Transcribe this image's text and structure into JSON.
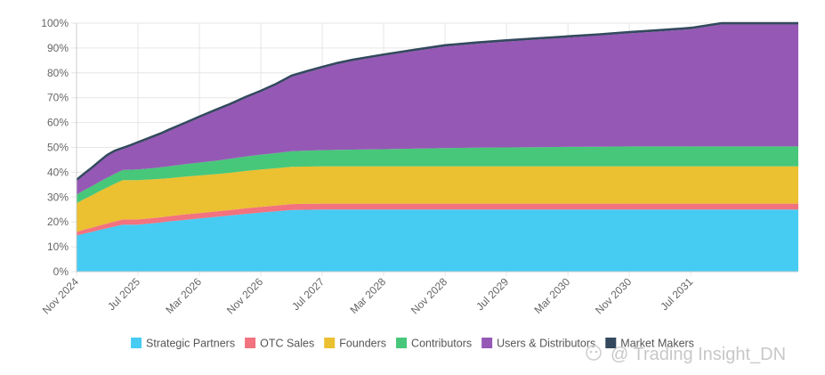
{
  "chart_data": {
    "type": "area",
    "stacked": true,
    "title": "",
    "xlabel": "",
    "ylabel": "",
    "ylim": [
      0,
      100
    ],
    "y_ticks": [
      "0%",
      "10%",
      "20%",
      "30%",
      "40%",
      "50%",
      "60%",
      "70%",
      "80%",
      "90%",
      "100%"
    ],
    "x_ticks": [
      "Nov 2024",
      "Jul 2025",
      "Mar 2026",
      "Nov 2026",
      "Jul 2027",
      "Mar 2028",
      "Nov 2028",
      "Jul 2029",
      "Mar 2030",
      "Nov 2030",
      "Jul 2031"
    ],
    "x_months": [
      0,
      1,
      2,
      3,
      4,
      5,
      6,
      7,
      8,
      9,
      10,
      11,
      12,
      14,
      16,
      18,
      20,
      22,
      24,
      26,
      28,
      30,
      32,
      34,
      36,
      40,
      44,
      48,
      52,
      56,
      60,
      64,
      68,
      72,
      76,
      80,
      84,
      88,
      90,
      92,
      94
    ],
    "series": [
      {
        "name": "Strategic Partners",
        "color": "#46cbf2",
        "values": [
          14.5,
          15.3,
          16.0,
          16.8,
          17.5,
          18.2,
          18.9,
          18.9,
          18.9,
          19.2,
          19.5,
          19.8,
          20.2,
          20.8,
          21.4,
          22.0,
          22.6,
          23.2,
          23.8,
          24.3,
          24.8,
          24.9,
          25.0,
          25.0,
          25.0,
          25.0,
          25.0,
          25.0,
          25.0,
          25.0,
          25.0,
          25.0,
          25.0,
          25.0,
          25.0,
          25.0,
          25.0,
          25.0,
          25.0,
          25.0,
          25.0
        ]
      },
      {
        "name": "OTC Sales",
        "color": "#f2727f",
        "values": [
          1.5,
          1.6,
          1.7,
          1.8,
          1.9,
          2.0,
          2.1,
          2.1,
          2.1,
          2.1,
          2.1,
          2.1,
          2.1,
          2.2,
          2.2,
          2.2,
          2.2,
          2.3,
          2.3,
          2.3,
          2.4,
          2.4,
          2.4,
          2.4,
          2.4,
          2.4,
          2.4,
          2.4,
          2.4,
          2.4,
          2.4,
          2.4,
          2.4,
          2.4,
          2.4,
          2.4,
          2.4,
          2.4,
          2.4,
          2.4,
          2.4
        ]
      },
      {
        "name": "Founders",
        "color": "#ebc031",
        "values": [
          11.5,
          12.3,
          13.0,
          13.8,
          14.5,
          15.2,
          15.8,
          15.8,
          15.8,
          15.7,
          15.6,
          15.5,
          15.3,
          15.2,
          15.1,
          15.0,
          15.0,
          15.0,
          15.0,
          15.0,
          15.0,
          15.0,
          15.0,
          15.0,
          15.0,
          15.0,
          15.0,
          15.0,
          15.0,
          15.0,
          15.0,
          15.0,
          15.0,
          15.0,
          15.0,
          15.0,
          15.0,
          15.0,
          15.0,
          15.0,
          15.0
        ]
      },
      {
        "name": "Contributors",
        "color": "#47c779",
        "values": [
          3.5,
          3.6,
          3.7,
          3.8,
          3.9,
          4.0,
          4.1,
          4.2,
          4.3,
          4.4,
          4.5,
          4.6,
          4.8,
          5.0,
          5.2,
          5.4,
          5.6,
          5.8,
          6.0,
          6.1,
          6.3,
          6.4,
          6.5,
          6.6,
          6.7,
          6.9,
          7.1,
          7.3,
          7.5,
          7.6,
          7.7,
          7.8,
          7.9,
          8.0,
          8.0,
          8.0,
          8.0,
          8.0,
          8.0,
          8.0,
          8.0
        ]
      },
      {
        "name": "Users & Distributors",
        "color": "#9559b5",
        "values": [
          5.5,
          6.2,
          7.0,
          7.8,
          8.7,
          8.8,
          8.4,
          9.4,
          10.5,
          11.4,
          12.3,
          13.2,
          14.2,
          16.0,
          18.0,
          19.9,
          21.6,
          23.5,
          25.2,
          27.4,
          29.9,
          31.5,
          33.0,
          34.5,
          35.7,
          37.6,
          39.3,
          40.9,
          41.8,
          42.6,
          43.3,
          44.0,
          44.7,
          45.5,
          46.3,
          47.2,
          49.1,
          49.1,
          49.1,
          49.1,
          49.1
        ]
      },
      {
        "name": "Market Makers",
        "color": "#34495e",
        "values": [
          0.5,
          0.5,
          0.5,
          0.5,
          0.5,
          0.5,
          0.5,
          0.5,
          0.5,
          0.5,
          0.5,
          0.5,
          0.5,
          0.5,
          0.5,
          0.5,
          0.5,
          0.5,
          0.5,
          0.5,
          0.5,
          0.5,
          0.5,
          0.5,
          0.5,
          0.5,
          0.5,
          0.5,
          0.5,
          0.5,
          0.5,
          0.5,
          0.5,
          0.5,
          0.5,
          0.5,
          0.5,
          0.5,
          0.5,
          0.5,
          0.5
        ]
      }
    ],
    "legend_position": "bottom",
    "grid": true
  },
  "watermark": {
    "text": "@ Trading Insight_DN"
  }
}
